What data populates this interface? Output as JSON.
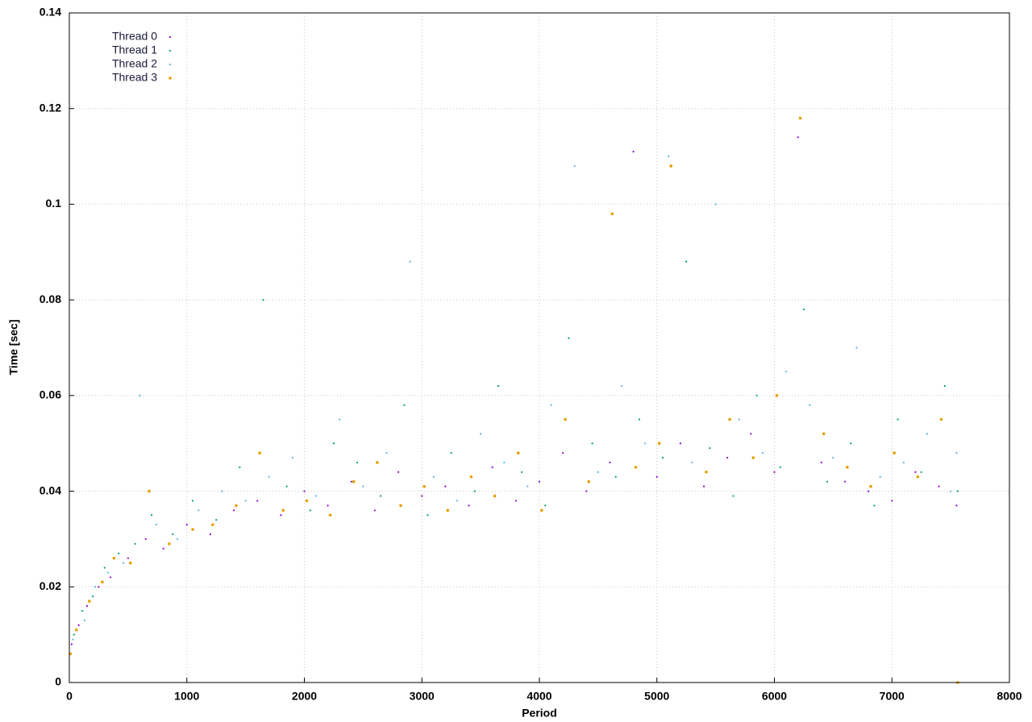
{
  "chart_data": {
    "type": "scatter",
    "xlabel": "Period",
    "ylabel": "Time [sec]",
    "xlim": [
      0,
      8000
    ],
    "ylim": [
      0,
      0.14
    ],
    "xticks": [
      0,
      1000,
      2000,
      3000,
      4000,
      5000,
      6000,
      7000,
      8000
    ],
    "yticks": [
      0,
      0.02,
      0.04,
      0.06,
      0.08,
      0.1,
      0.12,
      0.14
    ],
    "grid": true,
    "legend": "upper left",
    "series": [
      {
        "name": "Thread 0",
        "color": "#9400d3",
        "x": [
          20,
          80,
          150,
          250,
          350,
          500,
          650,
          800,
          1000,
          1200,
          1400,
          1600,
          1800,
          2000,
          2200,
          2400,
          2600,
          2800,
          3000,
          3200,
          3400,
          3600,
          3800,
          4000,
          4200,
          4400,
          4600,
          4800,
          5000,
          5200,
          5400,
          5600,
          5800,
          6000,
          6200,
          6400,
          6600,
          6800,
          7000,
          7200,
          7400,
          7550
        ],
        "values": [
          0.008,
          0.012,
          0.016,
          0.02,
          0.022,
          0.026,
          0.03,
          0.028,
          0.033,
          0.031,
          0.036,
          0.038,
          0.035,
          0.04,
          0.037,
          0.042,
          0.036,
          0.044,
          0.039,
          0.041,
          0.037,
          0.045,
          0.038,
          0.042,
          0.048,
          0.04,
          0.046,
          0.111,
          0.043,
          0.05,
          0.041,
          0.047,
          0.052,
          0.044,
          0.114,
          0.046,
          0.042,
          0.04,
          0.038,
          0.044,
          0.041,
          0.037
        ]
      },
      {
        "name": "Thread 1",
        "color": "#009e73",
        "x": [
          40,
          110,
          200,
          300,
          420,
          560,
          700,
          880,
          1050,
          1250,
          1450,
          1650,
          1850,
          2050,
          2250,
          2450,
          2650,
          2850,
          3050,
          3250,
          3450,
          3650,
          3850,
          4050,
          4250,
          4450,
          4650,
          4850,
          5050,
          5250,
          5450,
          5650,
          5850,
          6050,
          6250,
          6450,
          6650,
          6850,
          7050,
          7250,
          7450,
          7560
        ],
        "values": [
          0.01,
          0.015,
          0.018,
          0.024,
          0.027,
          0.029,
          0.035,
          0.031,
          0.038,
          0.034,
          0.045,
          0.08,
          0.041,
          0.036,
          0.05,
          0.046,
          0.039,
          0.058,
          0.035,
          0.048,
          0.04,
          0.062,
          0.044,
          0.037,
          0.072,
          0.05,
          0.043,
          0.055,
          0.047,
          0.088,
          0.049,
          0.039,
          0.06,
          0.045,
          0.078,
          0.042,
          0.05,
          0.037,
          0.055,
          0.044,
          0.062,
          0.04
        ]
      },
      {
        "name": "Thread 2",
        "color": "#56b4e9",
        "x": [
          30,
          130,
          220,
          330,
          460,
          600,
          740,
          920,
          1100,
          1300,
          1500,
          1700,
          1900,
          2100,
          2300,
          2500,
          2700,
          2900,
          3100,
          3300,
          3500,
          3700,
          3900,
          4100,
          4300,
          4500,
          4700,
          4900,
          5100,
          5300,
          5500,
          5700,
          5900,
          6100,
          6300,
          6500,
          6700,
          6900,
          7100,
          7300,
          7500,
          7550
        ],
        "values": [
          0.009,
          0.013,
          0.02,
          0.023,
          0.025,
          0.06,
          0.033,
          0.03,
          0.036,
          0.04,
          0.038,
          0.043,
          0.047,
          0.039,
          0.055,
          0.041,
          0.048,
          0.088,
          0.043,
          0.038,
          0.052,
          0.046,
          0.041,
          0.058,
          0.108,
          0.044,
          0.062,
          0.05,
          0.11,
          0.046,
          0.1,
          0.055,
          0.048,
          0.065,
          0.058,
          0.047,
          0.07,
          0.043,
          0.046,
          0.052,
          0.04,
          0.048
        ]
      },
      {
        "name": "Thread 3",
        "color": "#e69f00",
        "x": [
          10,
          60,
          170,
          280,
          380,
          520,
          680,
          850,
          1050,
          1220,
          1420,
          1620,
          1820,
          2020,
          2220,
          2420,
          2620,
          2820,
          3020,
          3220,
          3420,
          3620,
          3820,
          4020,
          4220,
          4420,
          4620,
          4820,
          5020,
          5120,
          5420,
          5620,
          5820,
          6020,
          6220,
          6420,
          6620,
          6820,
          7020,
          7220,
          7420,
          7560
        ],
        "values": [
          0.006,
          0.011,
          0.017,
          0.021,
          0.026,
          0.025,
          0.04,
          0.029,
          0.032,
          0.033,
          0.037,
          0.048,
          0.036,
          0.038,
          0.035,
          0.042,
          0.046,
          0.037,
          0.041,
          0.036,
          0.043,
          0.039,
          0.048,
          0.036,
          0.055,
          0.042,
          0.098,
          0.045,
          0.05,
          0.108,
          0.044,
          0.055,
          0.047,
          0.06,
          0.118,
          0.052,
          0.045,
          0.041,
          0.048,
          0.043,
          0.055,
          0.0
        ]
      }
    ]
  }
}
